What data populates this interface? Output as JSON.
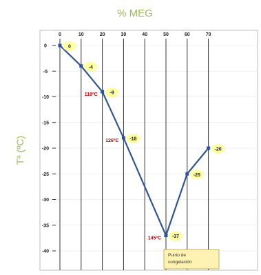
{
  "chart_data": {
    "type": "line",
    "title": "% MEG",
    "ylabel": "Tª (ºC)",
    "xlabel": "",
    "x_ticks": [
      "0",
      "10",
      "20",
      "30",
      "40",
      "50",
      "60",
      "70"
    ],
    "y_ticks": [
      "0",
      "-5",
      "-10",
      "-15",
      "-20",
      "-25",
      "-30",
      "-35",
      "-40"
    ],
    "xlim": [
      0,
      70
    ],
    "ylim": [
      -40,
      0
    ],
    "grid": "vertical lines at each x tick",
    "x": [
      0,
      10,
      20,
      30,
      50,
      60,
      70
    ],
    "y": [
      0,
      -4,
      -9,
      -18,
      -37,
      -25,
      -20
    ],
    "data_labels": [
      "0",
      "-4",
      "-9",
      "-18",
      "-37",
      "-25",
      "-20"
    ],
    "annotations": [
      {
        "text": "118ºC",
        "x": 20,
        "y": -9
      },
      {
        "text": "126ºC",
        "x": 30,
        "y": -18
      },
      {
        "text": "145ºC",
        "x": 50,
        "y": -37
      }
    ],
    "note": {
      "lines": [
        "Punto de",
        "congelación"
      ],
      "anchor_x": 50,
      "anchor_y": -40
    }
  },
  "colors": {
    "line": "#2f5597",
    "marker": "#2f5597",
    "title": "#9bbb59",
    "ylabel": "#9bbb59",
    "temp_annotation": "#c00000",
    "label_highlight": "#ffff99",
    "note_fill": "#fff2b3",
    "grid": "#333333",
    "axis": "#333333"
  }
}
